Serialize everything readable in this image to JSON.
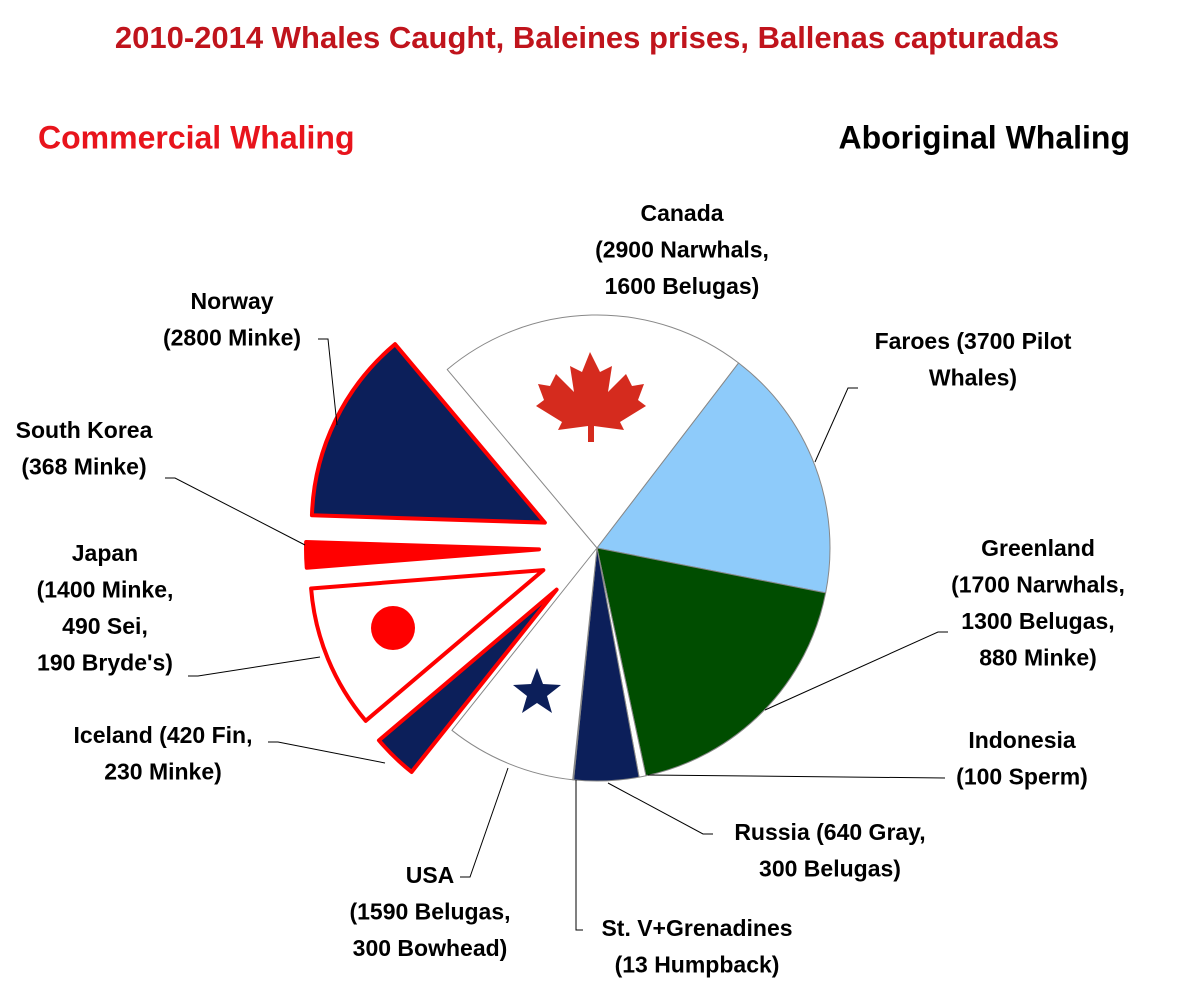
{
  "chart_data": {
    "type": "pie",
    "title": "2010-2014 Whales Caught, Baleines prises, Ballenas capturadas",
    "left_heading": "Commercial Whaling",
    "right_heading": "Aboriginal Whaling",
    "slices": [
      {
        "label": [
          "Canada",
          "(2900 Narwhals,",
          "1600 Belugas)"
        ],
        "values": [
          2900,
          1600
        ],
        "color": "#ffffff",
        "commercial": false
      },
      {
        "label": [
          "Faroes (3700 Pilot",
          "Whales)"
        ],
        "values": [
          3700
        ],
        "color": "#8ecbfa",
        "commercial": false
      },
      {
        "label": [
          "Greenland",
          "(1700 Narwhals,",
          "1300 Belugas,",
          "880 Minke)"
        ],
        "values": [
          1700,
          1300,
          880
        ],
        "color": "#004d00",
        "commercial": false
      },
      {
        "label": [
          "Indonesia",
          "(100 Sperm)"
        ],
        "values": [
          100
        ],
        "color": "#ffffff",
        "commercial": false
      },
      {
        "label": [
          "Russia  (640 Gray,",
          "300 Belugas)"
        ],
        "values": [
          640,
          300
        ],
        "color": "#0c1f5a",
        "commercial": false
      },
      {
        "label": [
          "St. V+Grenadines",
          "(13 Humpback)"
        ],
        "values": [
          13
        ],
        "color": "#ffffff",
        "commercial": false
      },
      {
        "label": [
          "USA",
          "(1590 Belugas,",
          "300 Bowhead)"
        ],
        "values": [
          1590,
          300
        ],
        "color": "#ffffff",
        "commercial": false
      },
      {
        "label": [
          "Iceland  (420 Fin,",
          "230 Minke)"
        ],
        "values": [
          420,
          230
        ],
        "color": "#0c1f5a",
        "commercial": true
      },
      {
        "label": [
          "Japan",
          "(1400 Minke,",
          "490 Sei,",
          "190 Bryde's)"
        ],
        "values": [
          1400,
          490,
          190
        ],
        "color": "#ffffff",
        "commercial": true
      },
      {
        "label": [
          "South Korea",
          "(368 Minke)"
        ],
        "values": [
          368
        ],
        "color": "#ff0000",
        "commercial": true
      },
      {
        "label": [
          "Norway",
          "(2800 Minke)"
        ],
        "values": [
          2800
        ],
        "color": "#0c1f5a",
        "commercial": true
      }
    ]
  }
}
